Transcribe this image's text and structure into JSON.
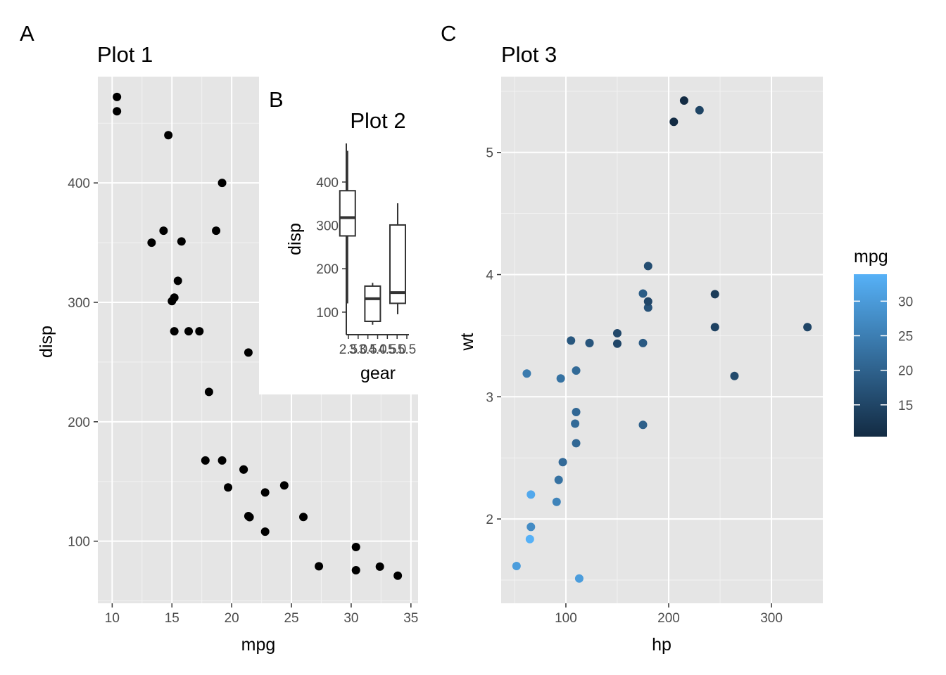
{
  "chart_data": [
    {
      "tag": "A",
      "type": "scatter",
      "title": "Plot 1",
      "xlabel": "mpg",
      "ylabel": "disp",
      "xlim": [
        8.8,
        35.6
      ],
      "ylim": [
        48,
        489
      ],
      "x_ticks": [
        10,
        15,
        20,
        25,
        30,
        35
      ],
      "y_ticks": [
        100,
        200,
        300,
        400
      ],
      "panel_background": "#e5e5e5",
      "grid": true,
      "point_color": "#000000",
      "points": [
        {
          "x": 10.4,
          "y": 472
        },
        {
          "x": 10.4,
          "y": 460
        },
        {
          "x": 14.7,
          "y": 440
        },
        {
          "x": 19.2,
          "y": 400
        },
        {
          "x": 14.3,
          "y": 360
        },
        {
          "x": 18.7,
          "y": 360
        },
        {
          "x": 13.3,
          "y": 350
        },
        {
          "x": 15.8,
          "y": 351
        },
        {
          "x": 15.5,
          "y": 318
        },
        {
          "x": 15.2,
          "y": 304
        },
        {
          "x": 15.0,
          "y": 301
        },
        {
          "x": 15.2,
          "y": 275.8
        },
        {
          "x": 16.4,
          "y": 275.8
        },
        {
          "x": 17.3,
          "y": 275.8
        },
        {
          "x": 21.4,
          "y": 258
        },
        {
          "x": 18.1,
          "y": 225
        },
        {
          "x": 17.8,
          "y": 167.6
        },
        {
          "x": 19.2,
          "y": 167.6
        },
        {
          "x": 21.0,
          "y": 160
        },
        {
          "x": 21.0,
          "y": 160
        },
        {
          "x": 19.7,
          "y": 145
        },
        {
          "x": 24.4,
          "y": 146.7
        },
        {
          "x": 22.8,
          "y": 140.8
        },
        {
          "x": 21.4,
          "y": 121
        },
        {
          "x": 21.5,
          "y": 120.1
        },
        {
          "x": 26.0,
          "y": 120.3
        },
        {
          "x": 22.8,
          "y": 108
        },
        {
          "x": 30.4,
          "y": 95.1
        },
        {
          "x": 27.3,
          "y": 79
        },
        {
          "x": 32.4,
          "y": 78.7
        },
        {
          "x": 30.4,
          "y": 75.7
        },
        {
          "x": 33.9,
          "y": 71.1
        }
      ]
    },
    {
      "tag": "B",
      "type": "boxplot",
      "title": "Plot 2",
      "xlabel": "gear",
      "ylabel": "disp",
      "xlim": [
        2.95,
        5.45
      ],
      "ylim": [
        48,
        489
      ],
      "x_tick_labels": [
        "2.5",
        "3.0",
        "3.5",
        "4.0",
        "4.5",
        "5.0",
        "5.5"
      ],
      "y_ticks": [
        100,
        200,
        300,
        400
      ],
      "boxes": [
        {
          "gear": 3,
          "lower_whisker": 120.1,
          "q1": 275.8,
          "median": 318,
          "q3": 380,
          "upper_whisker": 472
        },
        {
          "gear": 4,
          "lower_whisker": 71.1,
          "q1": 78.8,
          "median": 130.9,
          "q3": 160,
          "upper_whisker": 167.6
        },
        {
          "gear": 5,
          "lower_whisker": 95.1,
          "q1": 120.3,
          "median": 145,
          "q3": 301,
          "upper_whisker": 351
        }
      ]
    },
    {
      "tag": "C",
      "type": "scatter",
      "title": "Plot 3",
      "xlabel": "hp",
      "ylabel": "wt",
      "xlim": [
        37.05,
        349.95
      ],
      "ylim": [
        1.31,
        5.62
      ],
      "x_ticks": [
        100,
        200,
        300
      ],
      "y_ticks": [
        2,
        3,
        4,
        5
      ],
      "panel_background": "#e5e5e5",
      "grid": true,
      "color_by": "mpg",
      "legend": {
        "title": "mpg",
        "placement": "right",
        "ticks": [
          15,
          20,
          25,
          30
        ],
        "range": [
          10.4,
          33.9
        ],
        "low_color": "#132B43",
        "high_color": "#56B1F7"
      },
      "points": [
        {
          "x": 110,
          "y": 2.62,
          "mpg": 21.0
        },
        {
          "x": 110,
          "y": 2.875,
          "mpg": 21.0
        },
        {
          "x": 93,
          "y": 2.32,
          "mpg": 22.8
        },
        {
          "x": 110,
          "y": 3.215,
          "mpg": 21.4
        },
        {
          "x": 175,
          "y": 3.44,
          "mpg": 18.7
        },
        {
          "x": 105,
          "y": 3.46,
          "mpg": 18.1
        },
        {
          "x": 245,
          "y": 3.57,
          "mpg": 14.3
        },
        {
          "x": 62,
          "y": 3.19,
          "mpg": 24.4
        },
        {
          "x": 95,
          "y": 3.15,
          "mpg": 22.8
        },
        {
          "x": 123,
          "y": 3.44,
          "mpg": 19.2
        },
        {
          "x": 123,
          "y": 3.44,
          "mpg": 17.8
        },
        {
          "x": 180,
          "y": 4.07,
          "mpg": 16.4
        },
        {
          "x": 180,
          "y": 3.73,
          "mpg": 17.3
        },
        {
          "x": 180,
          "y": 3.78,
          "mpg": 15.2
        },
        {
          "x": 205,
          "y": 5.25,
          "mpg": 10.4
        },
        {
          "x": 215,
          "y": 5.424,
          "mpg": 10.4
        },
        {
          "x": 230,
          "y": 5.345,
          "mpg": 14.7
        },
        {
          "x": 66,
          "y": 2.2,
          "mpg": 32.4
        },
        {
          "x": 52,
          "y": 1.615,
          "mpg": 30.4
        },
        {
          "x": 65,
          "y": 1.835,
          "mpg": 33.9
        },
        {
          "x": 97,
          "y": 2.465,
          "mpg": 21.5
        },
        {
          "x": 150,
          "y": 3.52,
          "mpg": 15.5
        },
        {
          "x": 150,
          "y": 3.435,
          "mpg": 15.2
        },
        {
          "x": 245,
          "y": 3.84,
          "mpg": 13.3
        },
        {
          "x": 175,
          "y": 3.845,
          "mpg": 19.2
        },
        {
          "x": 66,
          "y": 1.935,
          "mpg": 27.3
        },
        {
          "x": 91,
          "y": 2.14,
          "mpg": 26.0
        },
        {
          "x": 113,
          "y": 1.513,
          "mpg": 30.4
        },
        {
          "x": 264,
          "y": 3.17,
          "mpg": 15.8
        },
        {
          "x": 175,
          "y": 2.77,
          "mpg": 19.7
        },
        {
          "x": 335,
          "y": 3.57,
          "mpg": 15.0
        },
        {
          "x": 109,
          "y": 2.78,
          "mpg": 21.4
        }
      ]
    }
  ]
}
